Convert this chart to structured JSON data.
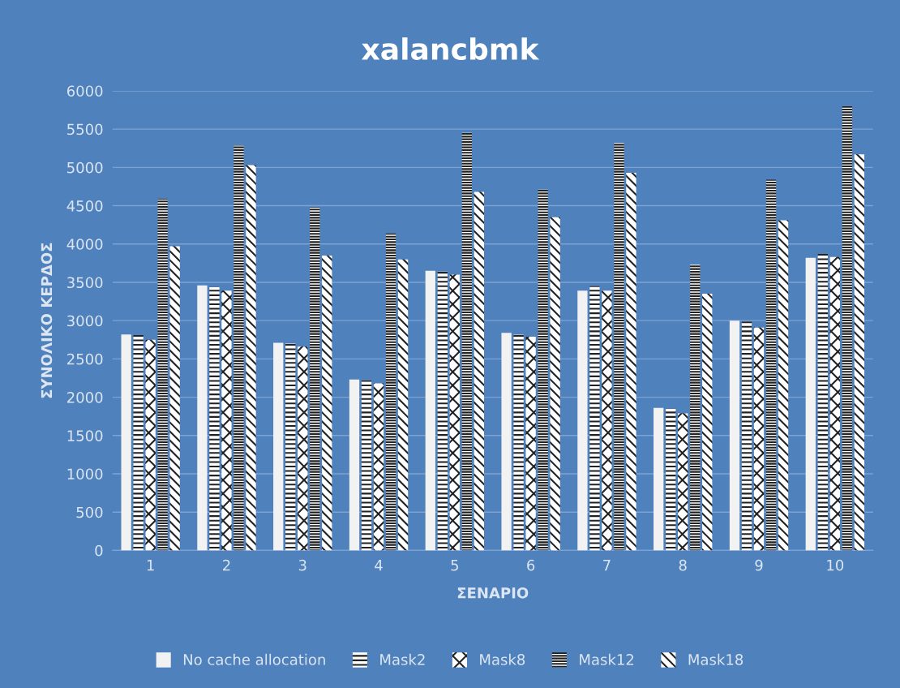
{
  "chart_data": {
    "type": "bar",
    "title": "xalancbmk",
    "xlabel": "ΣΕΝΑΡΙΟ",
    "ylabel": "ΣΥΝΟΛΙΚΟ ΚΕΡΔΟΣ",
    "categories": [
      "1",
      "2",
      "3",
      "4",
      "5",
      "6",
      "7",
      "8",
      "9",
      "10"
    ],
    "series": [
      {
        "name": "No cache allocation",
        "color": "#f2f2f2",
        "values": [
          2820,
          3460,
          2710,
          2230,
          3650,
          2840,
          3390,
          1860,
          3000,
          3820
        ]
      },
      {
        "name": "Mask2",
        "color": "#ffffff",
        "values": [
          2810,
          3440,
          2700,
          2220,
          3640,
          2820,
          3450,
          1850,
          2990,
          3870
        ]
      },
      {
        "name": "Mask8",
        "color": "#ffffff",
        "values": [
          2750,
          3390,
          2660,
          2180,
          3600,
          2790,
          3390,
          1790,
          2910,
          3830
        ]
      },
      {
        "name": "Mask12",
        "color": "#ffffff",
        "values": [
          4590,
          5290,
          4480,
          4140,
          5450,
          4710,
          5320,
          3730,
          4840,
          5800
        ]
      },
      {
        "name": "Mask18",
        "color": "#ffffff",
        "values": [
          3970,
          5030,
          3850,
          3800,
          4680,
          4350,
          4930,
          3350,
          4310,
          5170
        ]
      }
    ],
    "ylim": [
      0,
      6000
    ],
    "yticks": [
      0,
      500,
      1000,
      1500,
      2000,
      2500,
      3000,
      3500,
      4000,
      4500,
      5000,
      5500,
      6000
    ],
    "grid": "y",
    "legend": "bottom"
  }
}
